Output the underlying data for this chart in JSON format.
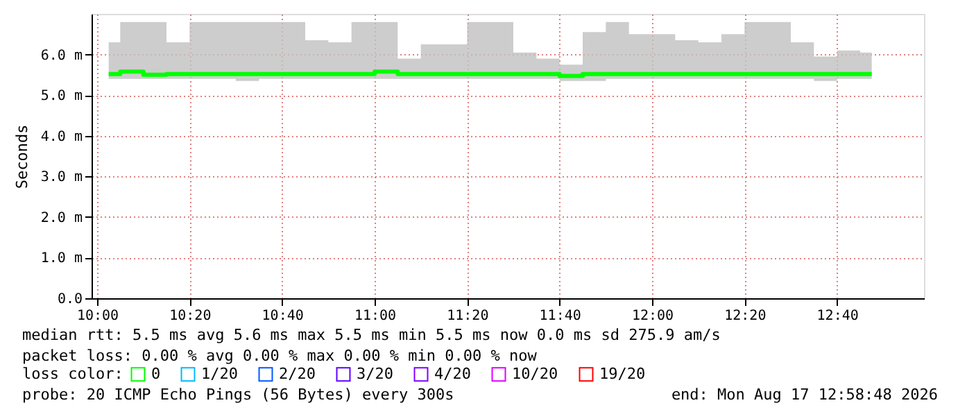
{
  "chart_data": {
    "type": "step",
    "ylabel": "Seconds",
    "legend_title": "loss color:",
    "legend": "bottom",
    "grid": true,
    "x": [
      "2026-08-17T10:02:30",
      "2026-08-17T10:07:30",
      "2026-08-17T10:12:30",
      "2026-08-17T10:17:30",
      "2026-08-17T10:22:30",
      "2026-08-17T10:27:30",
      "2026-08-17T10:32:30",
      "2026-08-17T10:37:30",
      "2026-08-17T10:42:30",
      "2026-08-17T10:47:30",
      "2026-08-17T10:52:30",
      "2026-08-17T10:57:30",
      "2026-08-17T11:02:30",
      "2026-08-17T11:07:30",
      "2026-08-17T11:12:30",
      "2026-08-17T11:17:30",
      "2026-08-17T11:22:30",
      "2026-08-17T11:27:30",
      "2026-08-17T11:32:30",
      "2026-08-17T11:37:30",
      "2026-08-17T11:42:30",
      "2026-08-17T11:47:30",
      "2026-08-17T11:52:30",
      "2026-08-17T11:57:30",
      "2026-08-17T12:02:30",
      "2026-08-17T12:07:30",
      "2026-08-17T12:12:30",
      "2026-08-17T12:17:30",
      "2026-08-17T12:22:30",
      "2026-08-17T12:27:30",
      "2026-08-17T12:32:30",
      "2026-08-17T12:37:30",
      "2026-08-17T12:42:30",
      "2026-08-17T12:47:30"
    ],
    "series": [
      {
        "name": "0",
        "color": "#00ff00",
        "values": [
          5.52,
          5.58,
          5.5,
          5.52,
          5.52,
          5.52,
          5.52,
          5.52,
          5.52,
          5.52,
          5.52,
          5.52,
          5.58,
          5.52,
          5.52,
          5.52,
          5.52,
          5.52,
          5.52,
          5.52,
          5.47,
          5.52,
          5.52,
          5.52,
          5.52,
          5.52,
          5.52,
          5.52,
          5.52,
          5.52,
          5.52,
          5.52,
          5.52,
          5.52
        ],
        "lower": [
          5.4,
          5.4,
          5.4,
          5.4,
          5.4,
          5.4,
          5.35,
          5.4,
          5.4,
          5.4,
          5.4,
          5.4,
          5.4,
          5.4,
          5.4,
          5.4,
          5.4,
          5.4,
          5.4,
          5.4,
          5.35,
          5.35,
          5.4,
          5.4,
          5.4,
          5.4,
          5.4,
          5.4,
          5.4,
          5.4,
          5.4,
          5.35,
          5.4,
          5.4
        ],
        "upper": [
          6.3,
          6.8,
          6.8,
          6.3,
          6.8,
          6.8,
          6.8,
          6.8,
          6.8,
          6.35,
          6.3,
          6.8,
          6.8,
          5.9,
          6.25,
          6.25,
          6.8,
          6.8,
          6.05,
          5.9,
          5.75,
          6.55,
          6.8,
          6.5,
          6.5,
          6.35,
          6.3,
          6.5,
          6.8,
          6.8,
          6.3,
          5.95,
          6.1,
          6.05
        ]
      },
      {
        "name": "1/20",
        "color": "#00b8ff",
        "values": [
          null,
          null,
          null,
          null,
          null,
          null,
          null,
          null,
          null,
          null,
          null,
          null,
          null,
          null,
          null,
          null,
          null,
          null,
          null,
          null,
          null,
          null,
          null,
          null,
          null,
          null,
          null,
          null,
          null,
          null,
          null,
          null,
          null,
          null
        ]
      },
      {
        "name": "2/20",
        "color": "#0059ff",
        "values": [
          null,
          null,
          null,
          null,
          null,
          null,
          null,
          null,
          null,
          null,
          null,
          null,
          null,
          null,
          null,
          null,
          null,
          null,
          null,
          null,
          null,
          null,
          null,
          null,
          null,
          null,
          null,
          null,
          null,
          null,
          null,
          null,
          null,
          null
        ]
      },
      {
        "name": "3/20",
        "color": "#5e00ff",
        "values": [
          null,
          null,
          null,
          null,
          null,
          null,
          null,
          null,
          null,
          null,
          null,
          null,
          null,
          null,
          null,
          null,
          null,
          null,
          null,
          null,
          null,
          null,
          null,
          null,
          null,
          null,
          null,
          null,
          null,
          null,
          null,
          null,
          null,
          null
        ]
      },
      {
        "name": "4/20",
        "color": "#7e00ff",
        "values": [
          null,
          null,
          null,
          null,
          null,
          null,
          null,
          null,
          null,
          null,
          null,
          null,
          null,
          null,
          null,
          null,
          null,
          null,
          null,
          null,
          null,
          null,
          null,
          null,
          null,
          null,
          null,
          null,
          null,
          null,
          null,
          null,
          null,
          null
        ]
      },
      {
        "name": "10/20",
        "color": "#dd00ff",
        "values": [
          null,
          null,
          null,
          null,
          null,
          null,
          null,
          null,
          null,
          null,
          null,
          null,
          null,
          null,
          null,
          null,
          null,
          null,
          null,
          null,
          null,
          null,
          null,
          null,
          null,
          null,
          null,
          null,
          null,
          null,
          null,
          null,
          null,
          null
        ]
      },
      {
        "name": "19/20",
        "color": "#ff0000",
        "values": [
          null,
          null,
          null,
          null,
          null,
          null,
          null,
          null,
          null,
          null,
          null,
          null,
          null,
          null,
          null,
          null,
          null,
          null,
          null,
          null,
          null,
          null,
          null,
          null,
          null,
          null,
          null,
          null,
          null,
          null,
          null,
          null,
          null,
          null
        ]
      }
    ],
    "xlim": [
      "2026-08-17T09:58:48",
      "2026-08-17T12:58:48"
    ],
    "xticks": [
      {
        "value": "2026-08-17T10:00",
        "label": "10:00"
      },
      {
        "value": "2026-08-17T10:20",
        "label": "10:20"
      },
      {
        "value": "2026-08-17T10:40",
        "label": "10:40"
      },
      {
        "value": "2026-08-17T11:00",
        "label": "11:00"
      },
      {
        "value": "2026-08-17T11:20",
        "label": "11:20"
      },
      {
        "value": "2026-08-17T11:40",
        "label": "11:40"
      },
      {
        "value": "2026-08-17T12:00",
        "label": "12:00"
      },
      {
        "value": "2026-08-17T12:20",
        "label": "12:20"
      },
      {
        "value": "2026-08-17T12:40",
        "label": "12:40"
      }
    ],
    "ylim": [
      0,
      7
    ],
    "yticks": [
      {
        "value": 0,
        "label": "0.0"
      },
      {
        "value": 1,
        "label": "1.0 m"
      },
      {
        "value": 2,
        "label": "2.0 m"
      },
      {
        "value": 3,
        "label": "3.0 m"
      },
      {
        "value": 4,
        "label": "4.0 m"
      },
      {
        "value": 5,
        "label": "5.0 m"
      },
      {
        "value": 6,
        "label": "6.0 m"
      }
    ],
    "annotations": [
      "median rtt:  5.5 ms avg  5.6 ms max  5.5 ms min  5.5 ms now  0.0 ms sd  275.9   am/s",
      "packet loss: 0.00 % avg  0.00 % max  0.00 % min  0.00 % now",
      "probe:       20 ICMP Echo Pings (56 Bytes) every 300s",
      "end: Mon Aug 17 12:58:48 2026"
    ]
  }
}
